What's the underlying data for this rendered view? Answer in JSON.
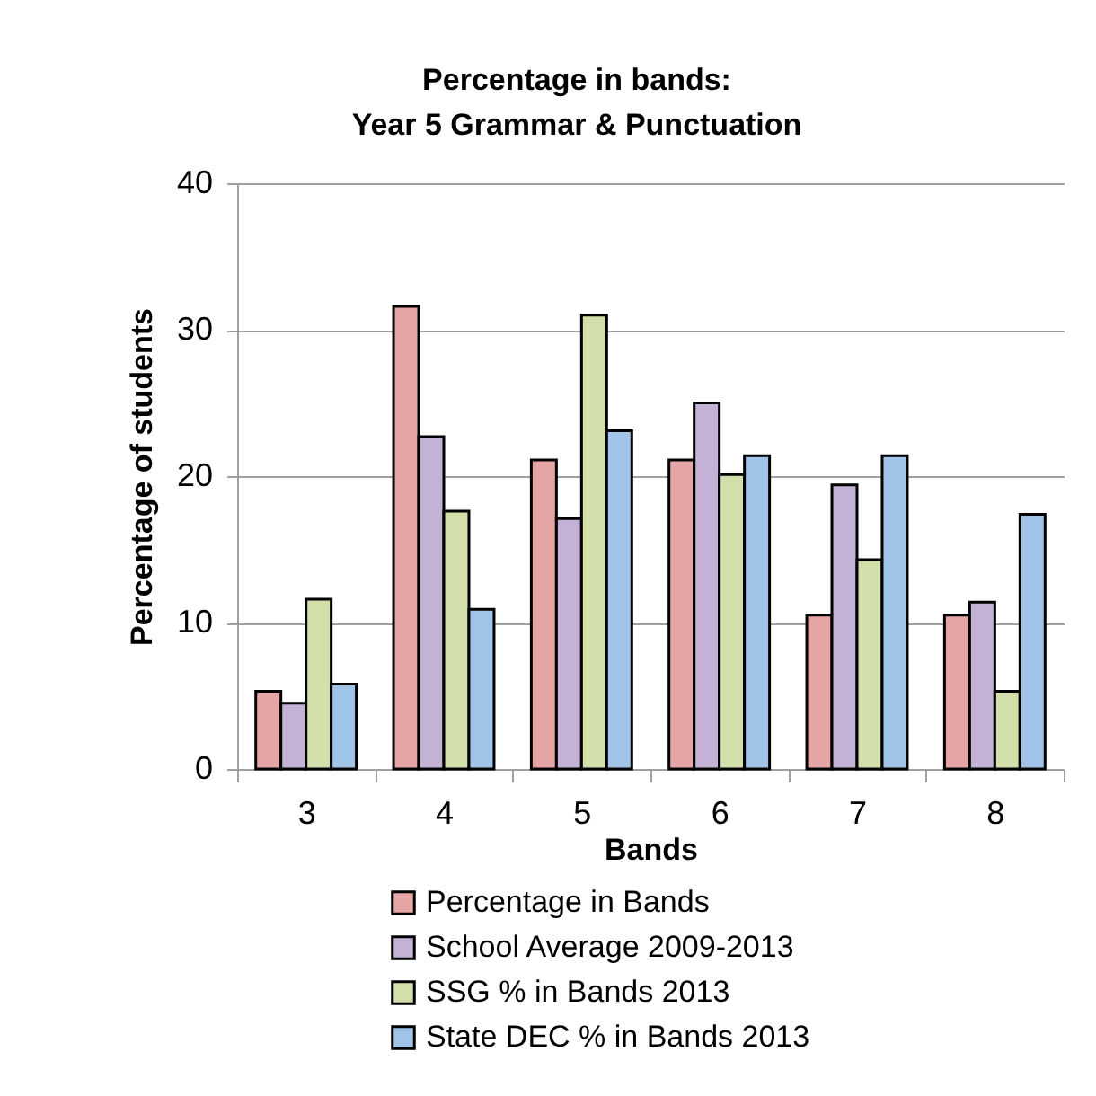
{
  "chart_data": {
    "type": "bar",
    "title": "Percentage in bands:\nYear 5 Grammar & Punctuation",
    "xlabel": "Bands",
    "ylabel": "Percentage of students",
    "categories": [
      "3",
      "4",
      "5",
      "6",
      "7",
      "8"
    ],
    "series": [
      {
        "name": "Percentage in Bands",
        "color": "#e4a5a4",
        "values": [
          5.3,
          31.6,
          21.1,
          21.1,
          10.5,
          10.5
        ]
      },
      {
        "name": "School Average 2009-2013",
        "color": "#c3b2d6",
        "values": [
          4.5,
          22.7,
          17.1,
          25.0,
          19.4,
          11.4
        ]
      },
      {
        "name": "SSG % in Bands 2013",
        "color": "#d2dfab",
        "values": [
          11.6,
          17.6,
          31.0,
          20.1,
          14.3,
          5.3
        ]
      },
      {
        "name": "State DEC % in Bands 2013",
        "color": "#a0c3e8",
        "values": [
          5.8,
          10.9,
          23.1,
          21.4,
          21.4,
          17.4
        ]
      }
    ],
    "ylim": [
      0,
      40
    ],
    "yticks": [
      0,
      10,
      20,
      30,
      40
    ],
    "grid": "y",
    "legend": "bottom"
  }
}
